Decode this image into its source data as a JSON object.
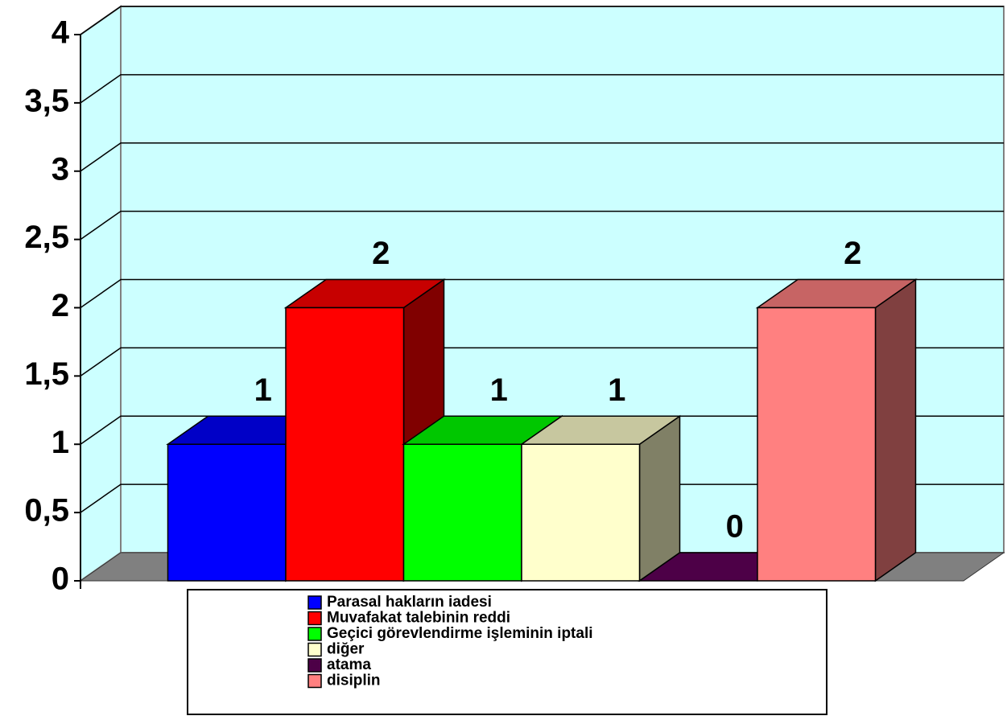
{
  "chart_data": {
    "type": "bar3d",
    "series": [
      {
        "name": "Parasal hakların iadesi",
        "color": "#0000ff",
        "values": [
          1
        ]
      },
      {
        "name": "Muvafakat talebinin reddi",
        "color": "#ff0000",
        "values": [
          2
        ]
      },
      {
        "name": "Geçici görevlendirme işleminin iptali",
        "color": "#00ff00",
        "values": [
          1
        ]
      },
      {
        "name": "diğer",
        "color": "#ffffcc",
        "values": [
          1
        ]
      },
      {
        "name": "atama",
        "color": "#4d0047",
        "values": [
          0
        ]
      },
      {
        "name": "disiplin",
        "color": "#ff8080",
        "values": [
          2
        ]
      }
    ],
    "ylim": [
      0,
      4
    ],
    "yticks": [
      0,
      {
        "value": 0.5,
        "label": "0,5"
      },
      1,
      {
        "value": 1.5,
        "label": "1,5"
      },
      2,
      {
        "value": 2.5,
        "label": "2,5"
      },
      3,
      {
        "value": 3.5,
        "label": "3,5"
      },
      4
    ],
    "grid": true,
    "wall_color": "#ccffff",
    "floor_color": "#808080"
  }
}
